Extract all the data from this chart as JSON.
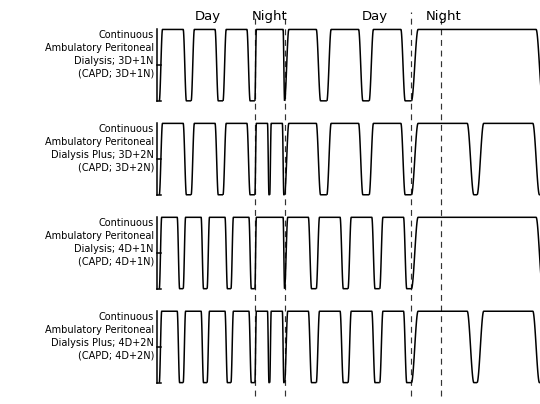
{
  "row_labels": [
    "Continuous\nAmbulatory Peritoneal\nDialysis; 3D+1N\n(CAPD; 3D+1N)",
    "Continuous\nAmbulatory Peritoneal\nDialysis Plus; 3D+2N\n(CAPD; 3D+2N)",
    "Continuous\nAmbulatory Peritoneal\nDialysis; 4D+1N\n(CAPD; 4D+1N)",
    "Continuous\nAmbulatory Peritoneal\nDialysis Plus; 4D+2N\n(CAPD; 4D+2N)"
  ],
  "col_labels": [
    "Day",
    "Night",
    "Day",
    "Night"
  ],
  "background_color": "#ffffff",
  "line_color": "#000000",
  "font_size_label": 7.0,
  "font_size_col": 9.5,
  "configs": [
    {
      "day": 3,
      "night": 1,
      "night_long": true
    },
    {
      "day": 3,
      "night": 2,
      "night_long": false
    },
    {
      "day": 4,
      "night": 1,
      "night_long": true
    },
    {
      "day": 4,
      "night": 2,
      "night_long": false
    }
  ]
}
